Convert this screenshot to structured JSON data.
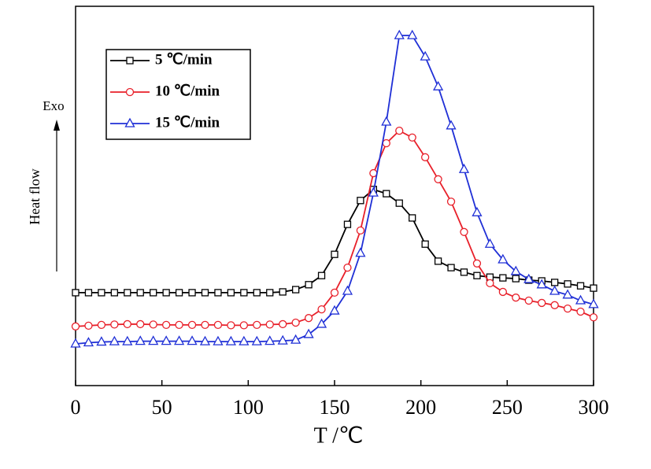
{
  "chart_data": {
    "type": "line",
    "xlabel": "T /℃",
    "ylabel": "Heat flow",
    "annotation": "Exo",
    "x": [
      0,
      7.5,
      15,
      22.5,
      30,
      37.5,
      45,
      52.5,
      60,
      67.5,
      75,
      82.5,
      90,
      97.5,
      105,
      112.5,
      120,
      127.5,
      135,
      142.5,
      150,
      157.5,
      165,
      172.5,
      180,
      187.5,
      195,
      202.5,
      210,
      217.5,
      225,
      232.5,
      240,
      247.5,
      255,
      262.5,
      270,
      277.5,
      285,
      292.5,
      300
    ],
    "series": [
      {
        "name": "5 ℃/min",
        "color": "#000000",
        "marker": "square",
        "values": [
          24.5,
          24.5,
          24.5,
          24.5,
          24.5,
          24.5,
          24.5,
          24.5,
          24.5,
          24.5,
          24.5,
          24.5,
          24.5,
          24.5,
          24.5,
          24.5,
          24.7,
          25.3,
          26.6,
          29,
          34.6,
          42.5,
          48.8,
          51.7,
          50.6,
          48.1,
          44.2,
          37.3,
          32.8,
          31.1,
          29.9,
          29,
          28.6,
          28.4,
          28.2,
          27.8,
          27.6,
          27.2,
          26.8,
          26.3,
          25.7
        ]
      },
      {
        "name": "10 ℃/min",
        "color": "#e8202a",
        "marker": "circle",
        "values": [
          15.6,
          15.8,
          16,
          16.1,
          16.2,
          16.2,
          16.1,
          16,
          16,
          16,
          16,
          16,
          15.9,
          15.9,
          16,
          16.1,
          16.2,
          16.6,
          17.8,
          20.1,
          24.5,
          31.1,
          40.9,
          56,
          63.9,
          67.2,
          65.4,
          60.2,
          54.4,
          48.5,
          40.5,
          32.2,
          27,
          24.7,
          23.2,
          22.4,
          21.8,
          21.2,
          20.3,
          19.5,
          18
        ]
      },
      {
        "name": "15 ℃/min",
        "color": "#1f2fd6",
        "marker": "triangle",
        "values": [
          11,
          11.3,
          11.5,
          11.6,
          11.6,
          11.7,
          11.7,
          11.7,
          11.7,
          11.7,
          11.6,
          11.6,
          11.6,
          11.6,
          11.6,
          11.7,
          11.8,
          12,
          13.5,
          16.2,
          19.7,
          24.9,
          34.9,
          50.8,
          69.5,
          92.3,
          92.3,
          86.7,
          78.8,
          68.5,
          57,
          45.6,
          37.3,
          33.2,
          30.1,
          28,
          26.6,
          24.9,
          23.9,
          22.4,
          21.4
        ]
      }
    ],
    "xlim": [
      0,
      300
    ],
    "xticks": [
      0,
      50,
      100,
      150,
      200,
      250,
      300
    ],
    "ylim": [
      0,
      100
    ],
    "legend": "upper-left"
  }
}
